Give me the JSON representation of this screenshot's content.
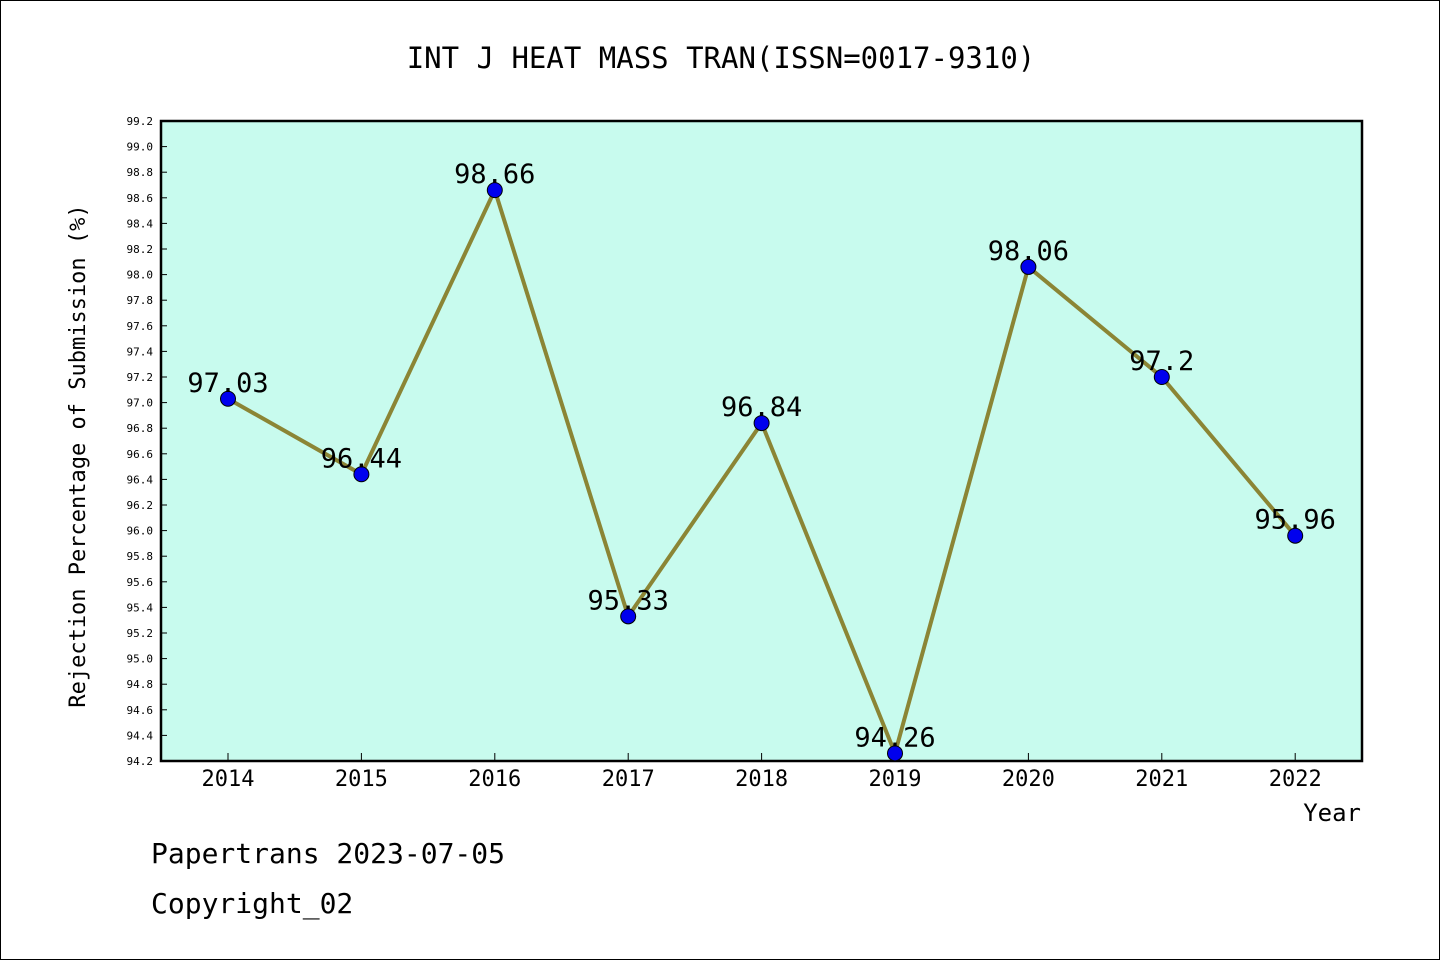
{
  "chart_data": {
    "type": "line",
    "title": "INT J HEAT MASS TRAN(ISSN=0017-9310)",
    "xlabel": "Year",
    "ylabel": "Rejection Percentage of Submission (%)",
    "categories": [
      "2014",
      "2015",
      "2016",
      "2017",
      "2018",
      "2019",
      "2020",
      "2021",
      "2022"
    ],
    "values": [
      97.03,
      96.44,
      98.66,
      95.33,
      96.84,
      94.26,
      98.06,
      97.2,
      95.96
    ],
    "data_labels": [
      "97.03",
      "96.44",
      "98.66",
      "95.33",
      "96.84",
      "94.26",
      "98.06",
      "97.2",
      "95.96"
    ],
    "ylim": [
      94.2,
      99.2
    ],
    "yticks": [
      "94.2",
      "94.4",
      "94.6",
      "94.8",
      "95.0",
      "95.2",
      "95.4",
      "95.6",
      "95.8",
      "96.0",
      "96.2",
      "96.4",
      "96.6",
      "96.8",
      "97.0",
      "97.2",
      "97.4",
      "97.6",
      "97.8",
      "98.0",
      "98.2",
      "98.4",
      "98.6",
      "98.8",
      "99.0",
      "99.2"
    ],
    "grid": false,
    "legend": "none",
    "colors": {
      "plot_background": "#c8fbee",
      "line": "#8b8535",
      "marker": "#0000ee",
      "axis": "#000000"
    }
  },
  "footer": {
    "date_line": "Papertrans 2023-07-05",
    "copyright": "Copyright_02"
  }
}
